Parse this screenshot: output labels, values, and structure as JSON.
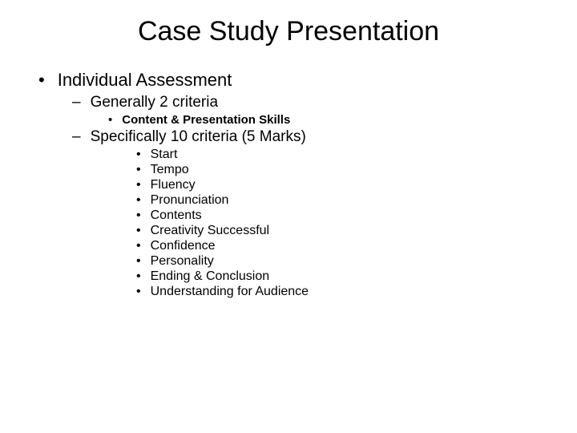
{
  "title": "Case Study Presentation",
  "level1_item": "Individual Assessment",
  "level2_items": [
    "Generally 2 criteria",
    "Specifically 10 criteria (5 Marks)"
  ],
  "level3_items": [
    "Content & Presentation Skills"
  ],
  "level4_items": [
    "Start",
    "Tempo",
    "Fluency",
    "Pronunciation",
    "Contents",
    "Creativity Successful",
    "Confidence",
    "Personality",
    "Ending & Conclusion",
    "Understanding for Audience"
  ],
  "styling": {
    "background_color": "#ffffff",
    "text_color": "#000000",
    "font_family": "Arial",
    "title_fontsize": 34,
    "level1_fontsize": 22,
    "level2_fontsize": 19,
    "level3_fontsize": 15,
    "level4_fontsize": 16,
    "level1_bullet": "•",
    "level2_bullet": "–",
    "level3_bullet": "•",
    "level4_bullet": "•"
  }
}
